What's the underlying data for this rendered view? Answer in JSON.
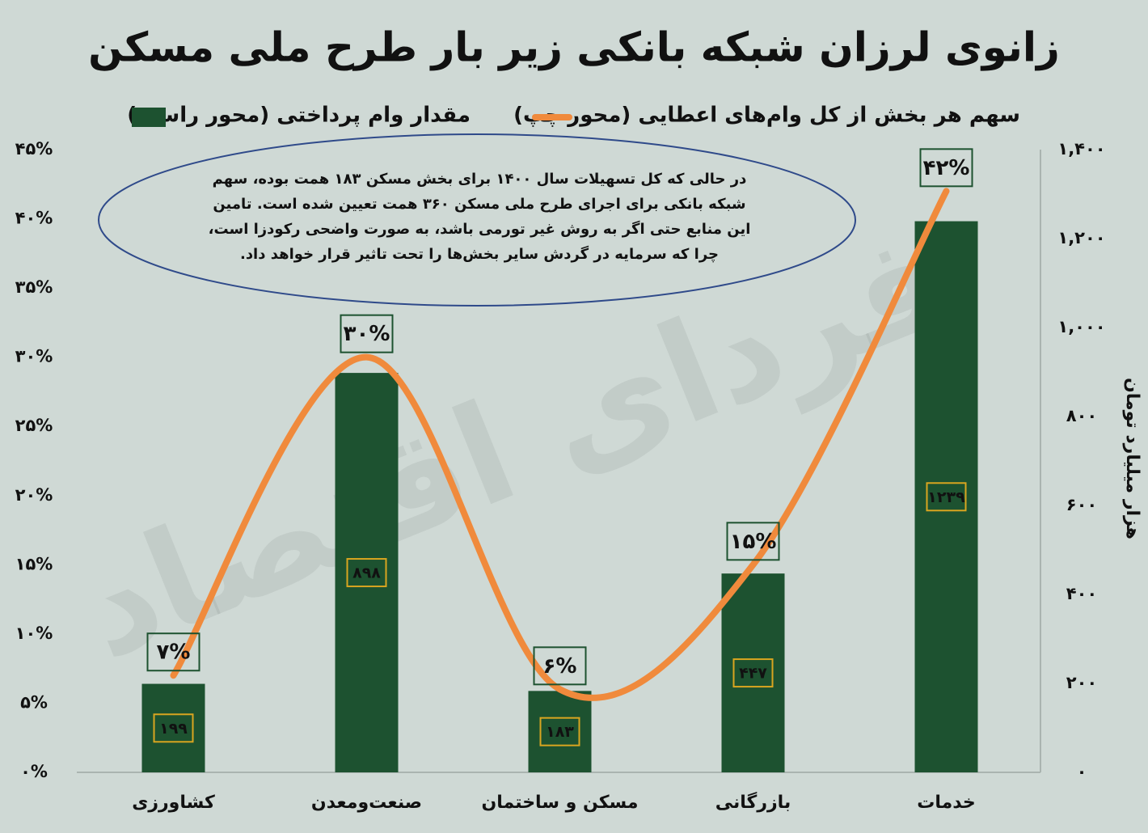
{
  "chart_data": {
    "type": "bar_line",
    "title": "زانوی لرزان شبکه بانکی زیر بار طرح ملی مسکن",
    "watermark": "فردای اقتصاد",
    "annotation": [
      "در حالی که کل تسهیلات سال ۱۴۰۰ برای بخش مسکن ۱۸۳ همت بوده، سهم",
      "شبکه بانکی برای اجرای طرح ملی مسکن ۳۶۰ همت تعیین شده است. تامین",
      "این منابع حتی اگر به روش غیر تورمی باشد، به صورت واضحی رکودزا است،",
      "چرا که سرمایه در گردش سایر بخش‌ها را تحت تاثیر قرار خواهد داد."
    ],
    "y2_label": "هزار میلیارد تومان",
    "categories": [
      "کشاورزی",
      "صنعت‌ومعدن",
      "مسکن و ساختمان",
      "بازرگانی",
      "خدمات"
    ],
    "series": [
      {
        "name": "مقدار وام پرداختی (محور راست)",
        "type": "bar",
        "axis": "y2",
        "color": "#1d5230",
        "values": [
          199,
          898,
          183,
          447,
          1239
        ],
        "value_labels": [
          "۱۹۹",
          "۸۹۸",
          "۱۸۳",
          "۴۴۷",
          "۱۲۳۹"
        ]
      },
      {
        "name": "سهم هر بخش از کل وام‌های اعطایی (محور چپ)",
        "type": "line",
        "axis": "y",
        "color": "#f08a3c",
        "values": [
          7,
          30,
          6,
          15,
          42
        ],
        "value_labels": [
          "۷%",
          "۳۰%",
          "۶%",
          "۱۵%",
          "۴۲%"
        ]
      }
    ],
    "ylim": [
      0,
      45
    ],
    "yticks": [
      {
        "value": 0,
        "label": "۰%"
      },
      {
        "value": 5,
        "label": "۵%"
      },
      {
        "value": 10,
        "label": "۱۰%"
      },
      {
        "value": 15,
        "label": "۱۵%"
      },
      {
        "value": 20,
        "label": "۲۰%"
      },
      {
        "value": 25,
        "label": "۲۵%"
      },
      {
        "value": 30,
        "label": "۳۰%"
      },
      {
        "value": 35,
        "label": "۳۵%"
      },
      {
        "value": 40,
        "label": "۴۰%"
      },
      {
        "value": 45,
        "label": "۴۵%"
      }
    ],
    "y2lim": [
      0,
      1400
    ],
    "y2ticks": [
      {
        "value": 0,
        "label": "۰"
      },
      {
        "value": 200,
        "label": "۲۰۰"
      },
      {
        "value": 400,
        "label": "۴۰۰"
      },
      {
        "value": 600,
        "label": "۶۰۰"
      },
      {
        "value": 800,
        "label": "۸۰۰"
      },
      {
        "value": 1000,
        "label": "۱,۰۰۰"
      },
      {
        "value": 1200,
        "label": "۱,۲۰۰"
      },
      {
        "value": 1400,
        "label": "۱,۴۰۰"
      }
    ],
    "grid": false
  }
}
